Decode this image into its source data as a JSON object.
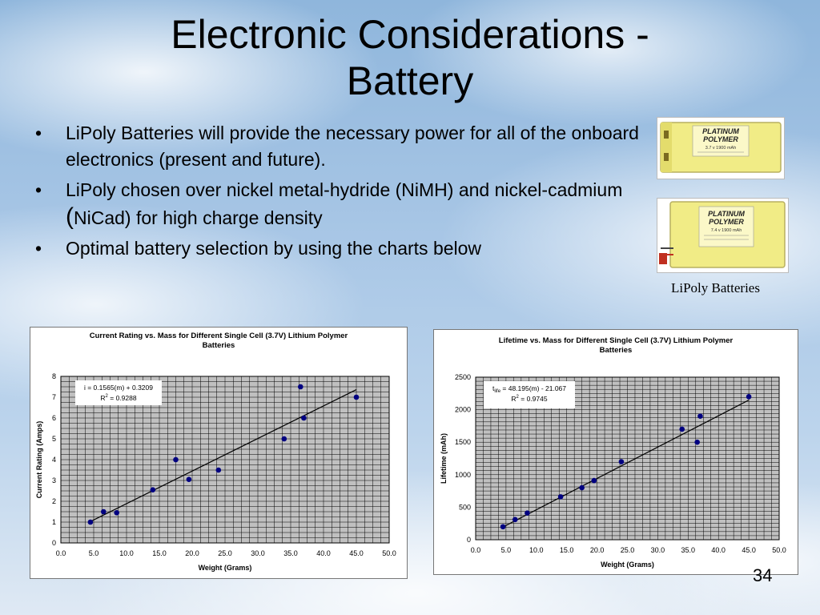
{
  "slide": {
    "title_line1": "Electronic Considerations -",
    "title_line2": "Battery",
    "bullets": [
      {
        "marker": "•",
        "text": "LiPoly Batteries will provide the necessary power for all of the onboard electronics (present and future)."
      },
      {
        "marker": "•",
        "text_a": "LiPoly chosen over nickel metal-hydride (NiMH) and nickel-cadmium ",
        "paren": "(",
        "text_b": "NiCad) for high charge density"
      },
      {
        "marker": "•",
        "text": "Optimal battery selection by using the charts below"
      }
    ],
    "battery_caption": "LiPoly Batteries",
    "battery_labels": [
      {
        "line1": "PLATINUM",
        "line2": "POLYMER",
        "spec": "3.7 v  1900 mAh"
      },
      {
        "line1": "PLATINUM",
        "line2": "POLYMER",
        "spec": "7.4 v  1900 mAh"
      }
    ],
    "slide_number": "34"
  },
  "colors": {
    "marker": "#000080",
    "plot_bg": "#c0c0c0",
    "grid": "#000000",
    "battery_yellow": "#f1ec86"
  },
  "chart_data": [
    {
      "type": "scatter",
      "title_line1": "Current Rating vs. Mass  for Different Single Cell (3.7V) Lithium Polymer",
      "title_line2": "Batteries",
      "xlabel": "Weight (Grams)",
      "ylabel": "Current Rating (Amps)",
      "xlim": [
        0,
        50
      ],
      "ylim": [
        0,
        8
      ],
      "x_ticks": [
        "0.0",
        "5.0",
        "10.0",
        "15.0",
        "20.0",
        "25.0",
        "30.0",
        "35.0",
        "40.0",
        "45.0",
        "50.0"
      ],
      "y_ticks": [
        "0",
        "1",
        "2",
        "3",
        "4",
        "5",
        "6",
        "7",
        "8"
      ],
      "grid": true,
      "equation": "i = 0.1565(m) + 0.3209",
      "r2_prefix": "R",
      "r2_sup": "2",
      "r2_value": " = 0.9288",
      "trendline": {
        "slope": 0.1565,
        "intercept": 0.3209,
        "x_start": 4.5,
        "x_end": 45
      },
      "points": [
        {
          "x": 4.5,
          "y": 1.0
        },
        {
          "x": 6.5,
          "y": 1.5
        },
        {
          "x": 8.5,
          "y": 1.45
        },
        {
          "x": 14.0,
          "y": 2.55
        },
        {
          "x": 17.5,
          "y": 4.0
        },
        {
          "x": 19.5,
          "y": 3.05
        },
        {
          "x": 24.0,
          "y": 3.5
        },
        {
          "x": 34.0,
          "y": 5.0
        },
        {
          "x": 36.5,
          "y": 7.5
        },
        {
          "x": 37.0,
          "y": 6.0
        },
        {
          "x": 45.0,
          "y": 7.0
        }
      ]
    },
    {
      "type": "scatter",
      "title_line1": "Lifetime vs. Mass  for Different Single Cell (3.7V) Lithium Polymer",
      "title_line2": "Batteries",
      "xlabel": "Weight (Grams)",
      "ylabel": "Lifetime (mAh)",
      "xlim": [
        0,
        50
      ],
      "ylim": [
        0,
        2500
      ],
      "x_ticks": [
        "0.0",
        "5.0",
        "10.0",
        "15.0",
        "20.0",
        "25.0",
        "30.0",
        "35.0",
        "40.0",
        "45.0",
        "50.0"
      ],
      "y_ticks": [
        "0",
        "500",
        "1000",
        "1500",
        "2000",
        "2500"
      ],
      "grid": true,
      "equation_prefix": "t",
      "equation_sub": "life",
      "equation_rest": " = 48.195(m) - 21.067",
      "r2_prefix": "R",
      "r2_sup": "2",
      "r2_value": " = 0.9745",
      "trendline": {
        "slope": 48.195,
        "intercept": -21.067,
        "x_start": 4.5,
        "x_end": 45
      },
      "points": [
        {
          "x": 4.5,
          "y": 200
        },
        {
          "x": 6.5,
          "y": 310
        },
        {
          "x": 8.5,
          "y": 410
        },
        {
          "x": 14.0,
          "y": 660
        },
        {
          "x": 17.5,
          "y": 800
        },
        {
          "x": 19.5,
          "y": 910
        },
        {
          "x": 24.0,
          "y": 1200
        },
        {
          "x": 34.0,
          "y": 1700
        },
        {
          "x": 36.5,
          "y": 1500
        },
        {
          "x": 37.0,
          "y": 1900
        },
        {
          "x": 45.0,
          "y": 2200
        }
      ]
    }
  ]
}
